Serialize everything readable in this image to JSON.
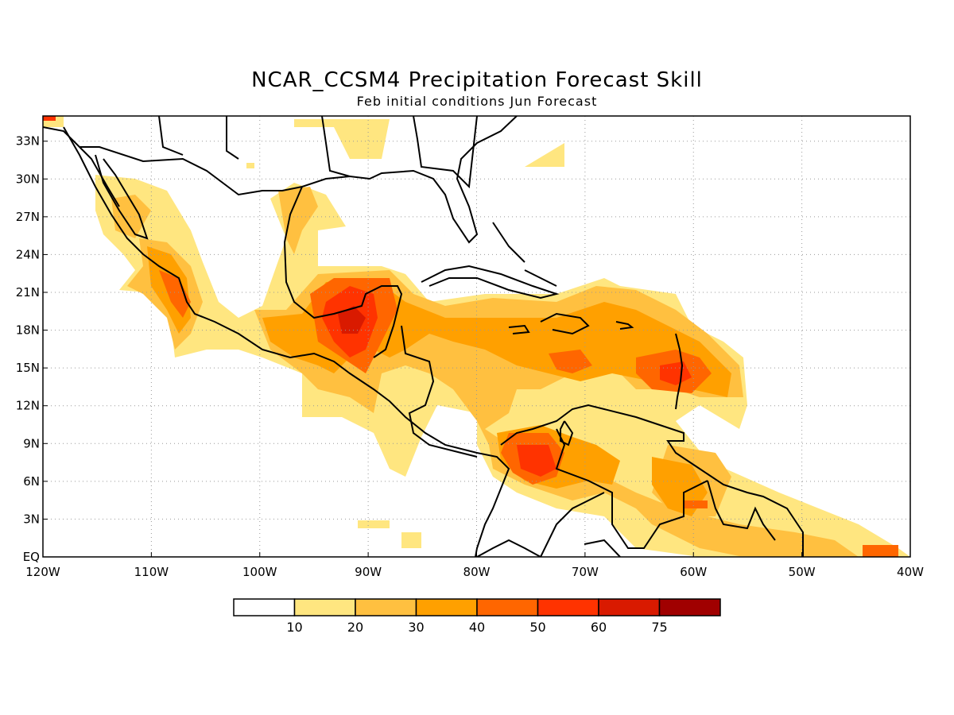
{
  "title": "NCAR_CCSM4 Precipitation Forecast Skill",
  "subtitle": "Feb initial conditions  Jun Forecast",
  "map": {
    "region": "Caribbean / Central America",
    "lon_range": [
      -120,
      -40
    ],
    "lat_range": [
      0,
      35
    ],
    "lat_labels": [
      "EQ",
      "3N",
      "6N",
      "9N",
      "12N",
      "15N",
      "18N",
      "21N",
      "24N",
      "27N",
      "30N",
      "33N"
    ],
    "lat_values": [
      0,
      3,
      6,
      9,
      12,
      15,
      18,
      21,
      24,
      27,
      30,
      33
    ],
    "lon_labels": [
      "120W",
      "110W",
      "100W",
      "90W",
      "80W",
      "70W",
      "60W",
      "50W",
      "40W"
    ],
    "lon_values": [
      -120,
      -110,
      -100,
      -90,
      -80,
      -70,
      -60,
      -50,
      -40
    ],
    "grid": "dotted"
  },
  "colorbar": {
    "labels": [
      "10",
      "20",
      "30",
      "40",
      "50",
      "60",
      "75"
    ],
    "colors": [
      "#ffffff",
      "#ffe680",
      "#ffc040",
      "#ffa000",
      "#ff6600",
      "#ff3300",
      "#d91a00",
      "#a00000"
    ]
  }
}
